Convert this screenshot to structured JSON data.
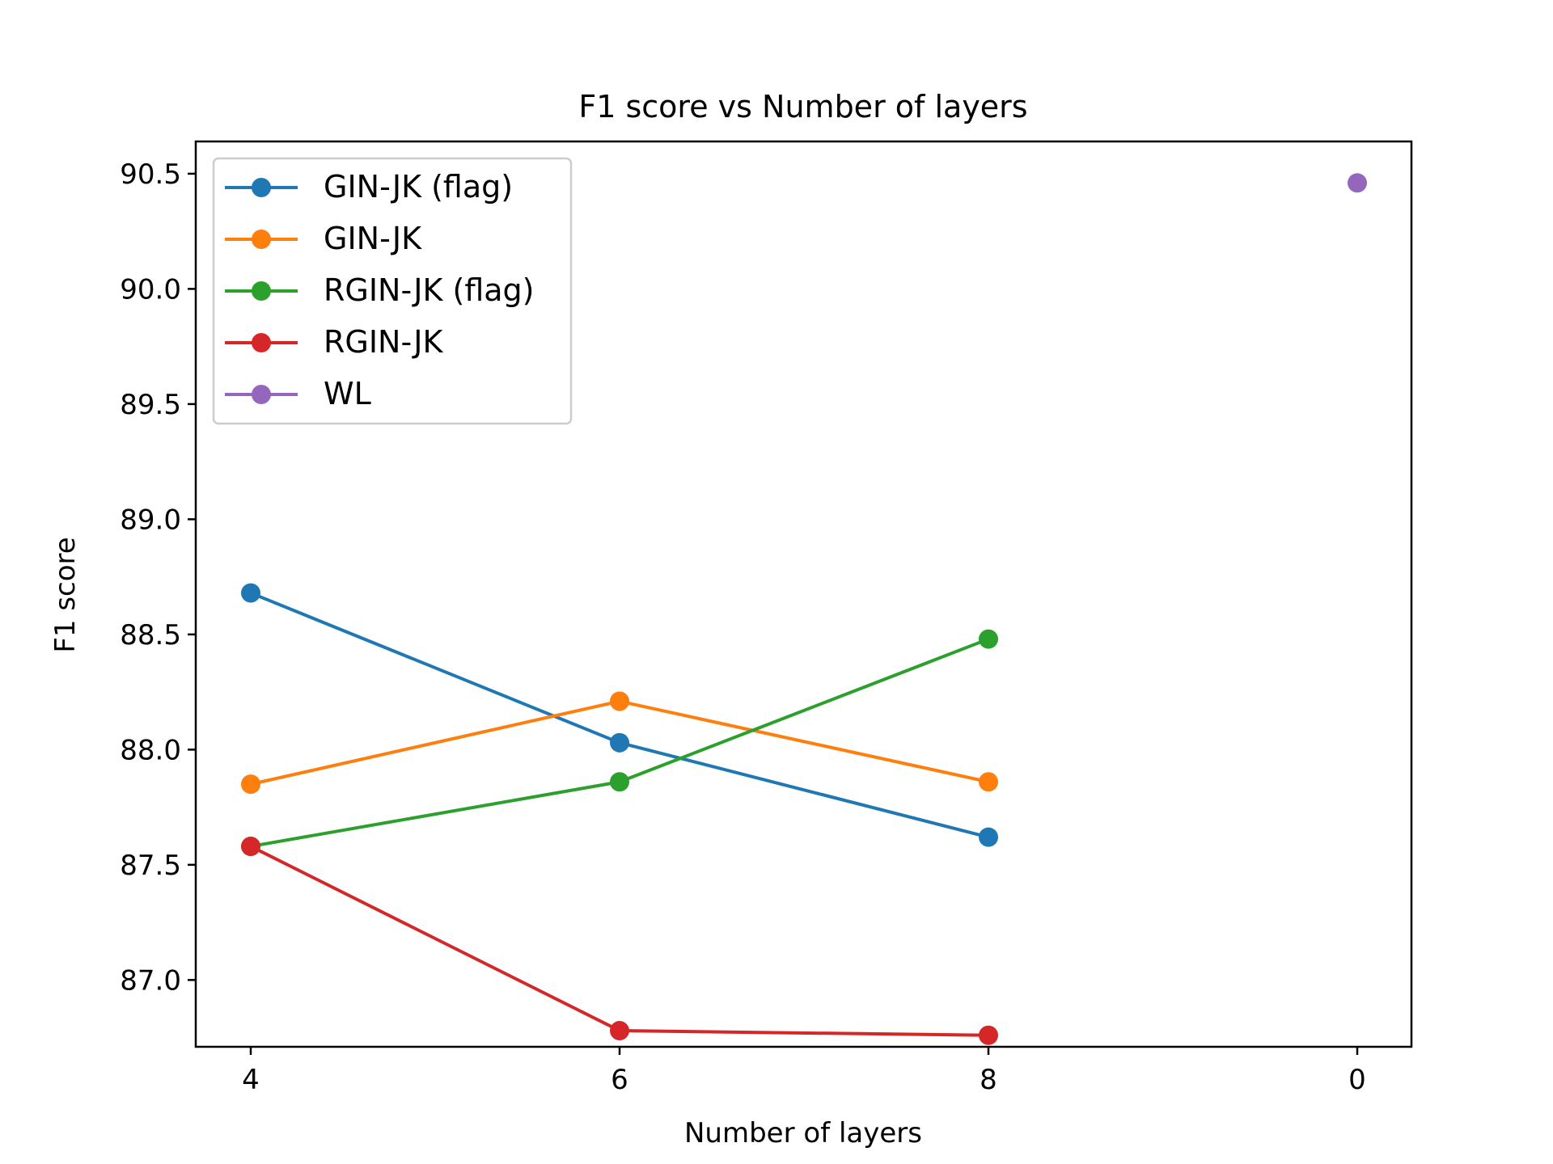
{
  "chart_data": {
    "type": "line",
    "title": "F1 score vs Number of layers",
    "xlabel": "Number of layers",
    "ylabel": "F1 score",
    "categories": [
      "4",
      "6",
      "8",
      "0"
    ],
    "ylim": [
      86.71,
      90.64
    ],
    "yticks": [
      "87.0",
      "87.5",
      "88.0",
      "88.5",
      "89.0",
      "89.5",
      "90.0",
      "90.5"
    ],
    "grid": false,
    "legend_position": "top-left",
    "series": [
      {
        "name": "GIN-JK (flag)",
        "color": "#1f77b4",
        "values": [
          88.68,
          88.03,
          87.62,
          null
        ]
      },
      {
        "name": "GIN-JK",
        "color": "#ff7f0e",
        "values": [
          87.85,
          88.21,
          87.86,
          null
        ]
      },
      {
        "name": "RGIN-JK (flag)",
        "color": "#2ca02c",
        "values": [
          87.58,
          87.86,
          88.48,
          null
        ]
      },
      {
        "name": "RGIN-JK",
        "color": "#d62728",
        "values": [
          87.58,
          86.78,
          86.76,
          null
        ]
      },
      {
        "name": "WL",
        "color": "#9467bd",
        "values": [
          null,
          null,
          null,
          90.46
        ]
      }
    ]
  }
}
